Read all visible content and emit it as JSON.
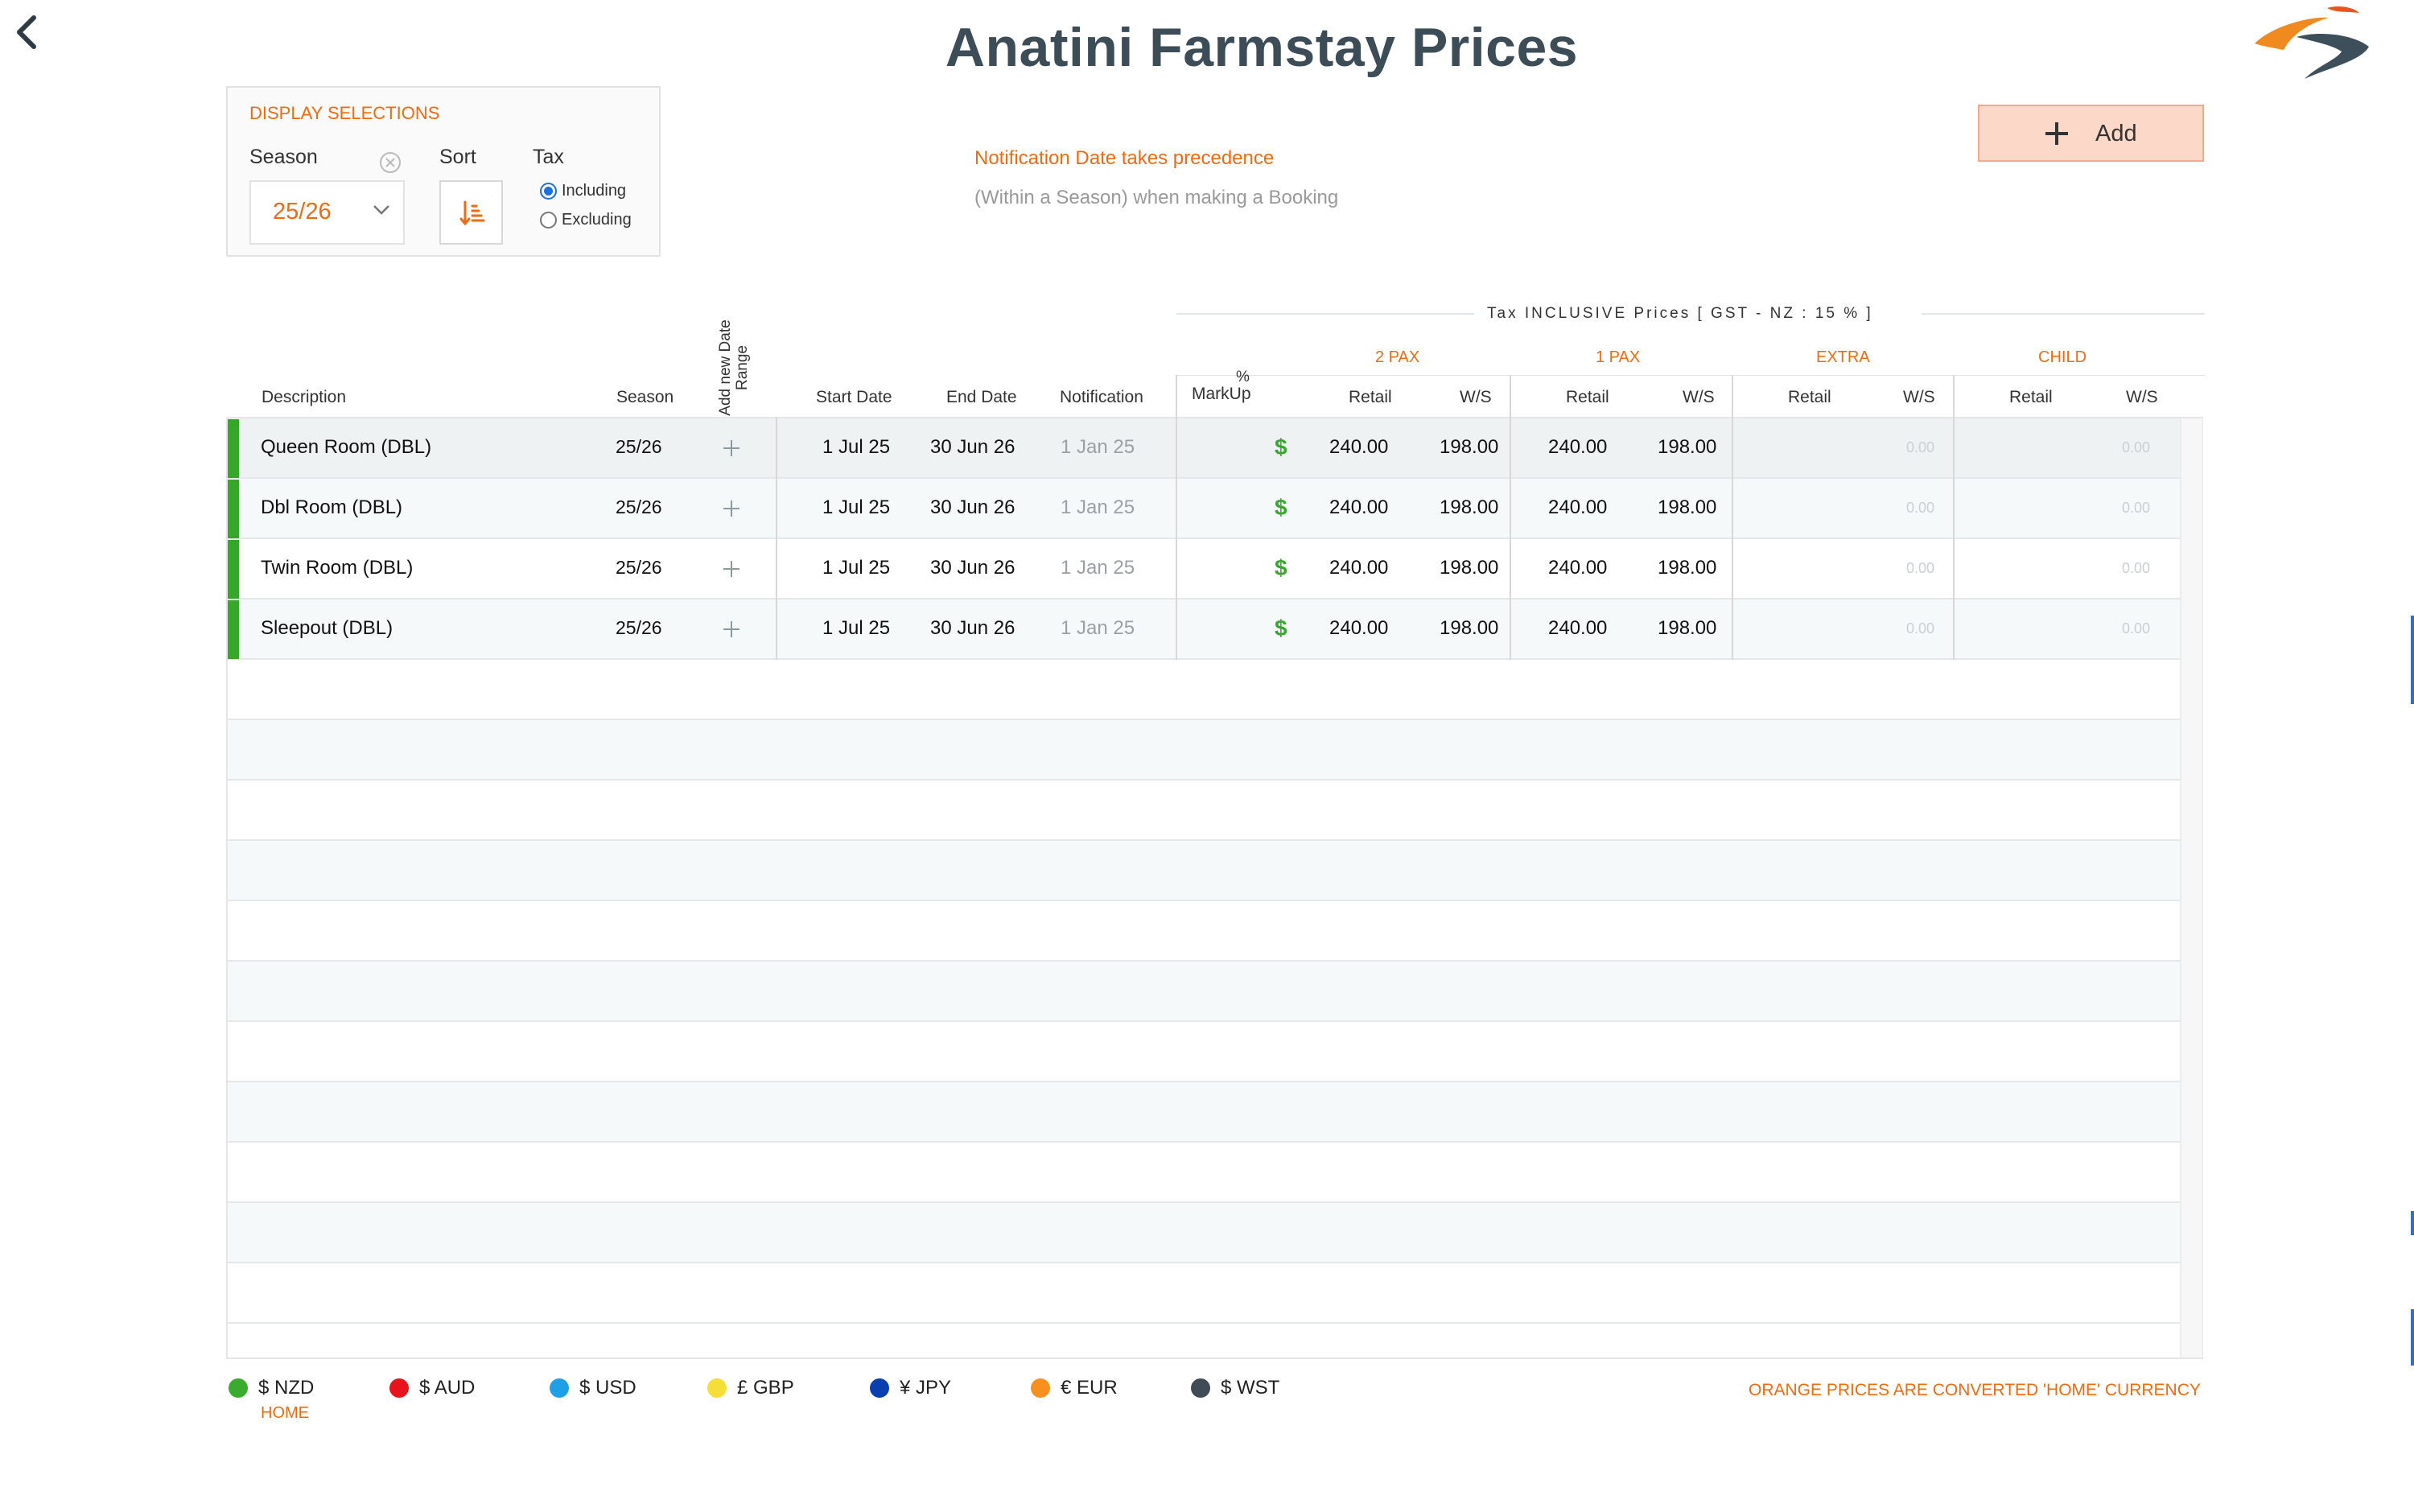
{
  "header": {
    "title": "Anatini Farmstay Prices"
  },
  "display_selections": {
    "heading": "DISPLAY SELECTIONS",
    "season_label": "Season",
    "season_value": "25/26",
    "sort_label": "Sort",
    "tax_label": "Tax",
    "tax_options": [
      {
        "label": "Including",
        "selected": true
      },
      {
        "label": "Excluding",
        "selected": false
      }
    ]
  },
  "notice": {
    "line1": "Notification Date takes precedence",
    "line2": "(Within a Season) when making a Booking"
  },
  "add_button": {
    "label": "Add"
  },
  "table": {
    "tax_banner": "Tax INCLUSIVE Prices [ GST - NZ : 15 % ]",
    "columns": {
      "description": "Description",
      "season": "Season",
      "add_date_range": "Add new Date Range",
      "start_date": "Start Date",
      "end_date": "End Date",
      "notification": "Notification",
      "markup_pct": "%",
      "markup": "MarkUp",
      "retail": "Retail",
      "ws": "W/S"
    },
    "groups": [
      "2 PAX",
      "1 PAX",
      "EXTRA",
      "CHILD"
    ],
    "rows": [
      {
        "description": "Queen Room (DBL)",
        "season": "25/26",
        "start": "1 Jul 25",
        "end": "30 Jun 26",
        "notification": "1 Jan 25",
        "markup_symbol": "$",
        "pax2_retail": "240.00",
        "pax2_ws": "198.00",
        "pax1_retail": "240.00",
        "pax1_ws": "198.00",
        "extra_ws": "0.00",
        "child_ws": "0.00"
      },
      {
        "description": "Dbl Room (DBL)",
        "season": "25/26",
        "start": "1 Jul 25",
        "end": "30 Jun 26",
        "notification": "1 Jan 25",
        "markup_symbol": "$",
        "pax2_retail": "240.00",
        "pax2_ws": "198.00",
        "pax1_retail": "240.00",
        "pax1_ws": "198.00",
        "extra_ws": "0.00",
        "child_ws": "0.00"
      },
      {
        "description": "Twin Room (DBL)",
        "season": "25/26",
        "start": "1 Jul 25",
        "end": "30 Jun 26",
        "notification": "1 Jan 25",
        "markup_symbol": "$",
        "pax2_retail": "240.00",
        "pax2_ws": "198.00",
        "pax1_retail": "240.00",
        "pax1_ws": "198.00",
        "extra_ws": "0.00",
        "child_ws": "0.00"
      },
      {
        "description": "Sleepout (DBL)",
        "season": "25/26",
        "start": "1 Jul 25",
        "end": "30 Jun 26",
        "notification": "1 Jan 25",
        "markup_symbol": "$",
        "pax2_retail": "240.00",
        "pax2_ws": "198.00",
        "pax1_retail": "240.00",
        "pax1_ws": "198.00",
        "extra_ws": "0.00",
        "child_ws": "0.00"
      }
    ]
  },
  "legend": {
    "currencies": [
      {
        "label": "$ NZD",
        "color": "#3aab2e"
      },
      {
        "label": "$ AUD",
        "color": "#e8141c"
      },
      {
        "label": "$ USD",
        "color": "#1fa0e6"
      },
      {
        "label": "£ GBP",
        "color": "#f6de3a"
      },
      {
        "label": "¥ JPY",
        "color": "#0a3fb0"
      },
      {
        "label": "€ EUR",
        "color": "#f7901e"
      },
      {
        "label": "$ WST",
        "color": "#3f4c55"
      }
    ],
    "home_label": "HOME",
    "converted_note": "ORANGE PRICES ARE CONVERTED 'HOME' CURRENCY"
  },
  "colors": {
    "accent": "#f06a0f",
    "title": "#3c4d57",
    "row_marker": "#35a829",
    "add_button_bg": "#fbd8c7"
  },
  "icons": {
    "back": "chevron-left-icon",
    "logo": "swoosh-logo",
    "clear": "clear-circle-icon",
    "dropdown": "chevron-down-icon",
    "sort": "sort-icon",
    "add": "plus-icon",
    "row_add": "plus-icon"
  }
}
